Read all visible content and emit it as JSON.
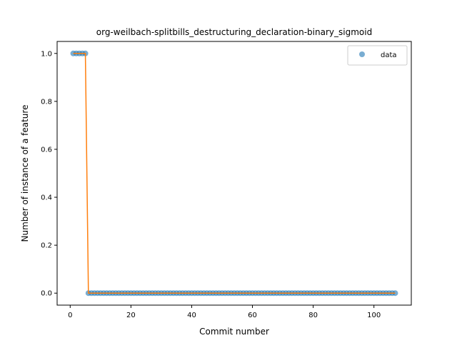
{
  "chart_data": {
    "type": "scatter",
    "title": "org-weilbach-splitbills_destructuring_declaration-binary_sigmoid",
    "xlabel": "Commit number",
    "ylabel": "Number of instance of a feature",
    "xlim": [
      -4.3,
      112.3
    ],
    "ylim": [
      -0.05,
      1.05
    ],
    "xticks": [
      0,
      20,
      40,
      60,
      80,
      100
    ],
    "yticks": [
      0.0,
      0.2,
      0.4,
      0.6,
      0.8,
      1.0
    ],
    "xtick_labels": [
      "0",
      "20",
      "40",
      "60",
      "80",
      "100"
    ],
    "ytick_labels": [
      "0.0",
      "0.2",
      "0.4",
      "0.6",
      "0.8",
      "1.0"
    ],
    "grid": false,
    "legend": {
      "position": "top-right",
      "entries": [
        "data"
      ]
    },
    "series": [
      {
        "name": "data",
        "kind": "scatter",
        "color": "#1f77b4",
        "x_start": 1,
        "y": [
          1,
          1,
          1,
          1,
          1,
          0,
          0,
          0,
          0,
          0,
          0,
          0,
          0,
          0,
          0,
          0,
          0,
          0,
          0,
          0,
          0,
          0,
          0,
          0,
          0,
          0,
          0,
          0,
          0,
          0,
          0,
          0,
          0,
          0,
          0,
          0,
          0,
          0,
          0,
          0,
          0,
          0,
          0,
          0,
          0,
          0,
          0,
          0,
          0,
          0,
          0,
          0,
          0,
          0,
          0,
          0,
          0,
          0,
          0,
          0,
          0,
          0,
          0,
          0,
          0,
          0,
          0,
          0,
          0,
          0,
          0,
          0,
          0,
          0,
          0,
          0,
          0,
          0,
          0,
          0,
          0,
          0,
          0,
          0,
          0,
          0,
          0,
          0,
          0,
          0,
          0,
          0,
          0,
          0,
          0,
          0,
          0,
          0,
          0,
          0,
          0,
          0,
          0,
          0,
          0,
          0,
          0
        ]
      },
      {
        "kind": "line",
        "color": "#ff7f0e",
        "x": [
          1,
          5,
          6,
          107
        ],
        "y": [
          1,
          1,
          0,
          0
        ]
      }
    ]
  }
}
